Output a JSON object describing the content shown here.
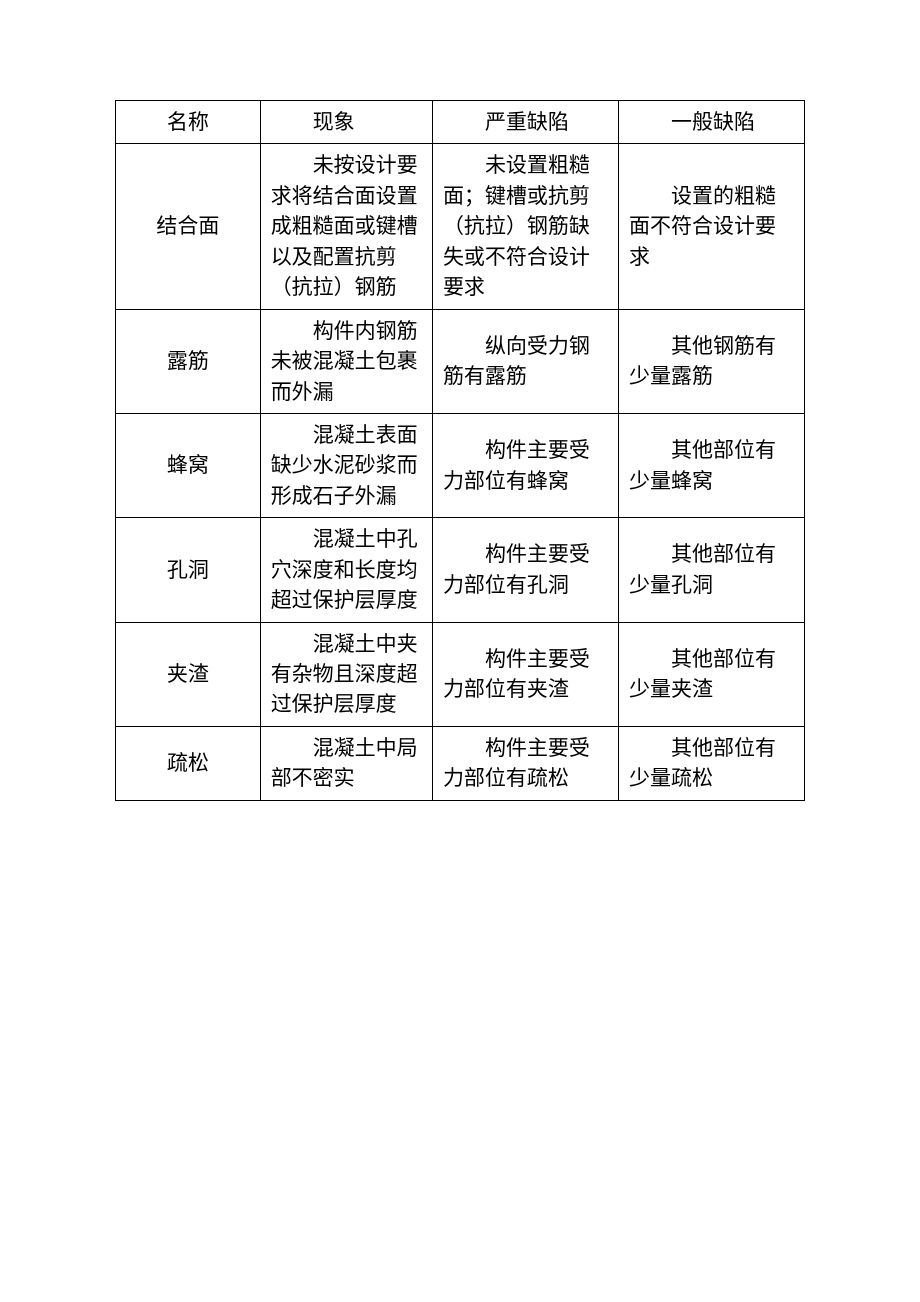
{
  "table": {
    "columns": [
      {
        "key": "name",
        "label": "名称",
        "class": "col-name"
      },
      {
        "key": "phenomenon",
        "label": "现象",
        "class": "col-phenom"
      },
      {
        "key": "severe",
        "label": "严重缺陷",
        "class": "col-severe"
      },
      {
        "key": "general",
        "label": "一般缺陷",
        "class": "col-general"
      }
    ],
    "rows": [
      {
        "name": "结合面",
        "phenomenon": "未按设计要求将结合面设置成粗糙面或键槽以及配置抗剪（抗拉）钢筋",
        "severe": "未设置粗糙面；键槽或抗剪（抗拉）钢筋缺失或不符合设计要求",
        "general": "设置的粗糙面不符合设计要求"
      },
      {
        "name": "露筋",
        "phenomenon": "构件内钢筋未被混凝土包裹而外漏",
        "severe": "纵向受力钢筋有露筋",
        "general": "其他钢筋有少量露筋"
      },
      {
        "name": "蜂窝",
        "phenomenon": "混凝土表面缺少水泥砂浆而形成石子外漏",
        "severe": "构件主要受力部位有蜂窝",
        "general": "其他部位有少量蜂窝"
      },
      {
        "name": "孔洞",
        "phenomenon": "混凝土中孔穴深度和长度均超过保护层厚度",
        "severe": "构件主要受力部位有孔洞",
        "general": "其他部位有少量孔洞"
      },
      {
        "name": "夹渣",
        "phenomenon": "混凝土中夹有杂物且深度超过保护层厚度",
        "severe": "构件主要受力部位有夹渣",
        "general": "其他部位有少量夹渣"
      },
      {
        "name": "疏松",
        "phenomenon": "混凝土中局部不密实",
        "severe": "构件主要受力部位有疏松",
        "general": "其他部位有少量疏松"
      }
    ],
    "style": {
      "border_color": "#000000",
      "background_color": "#ffffff",
      "text_color": "#000000",
      "font_size": 21,
      "line_height": 1.45,
      "text_indent_em": 2
    }
  }
}
